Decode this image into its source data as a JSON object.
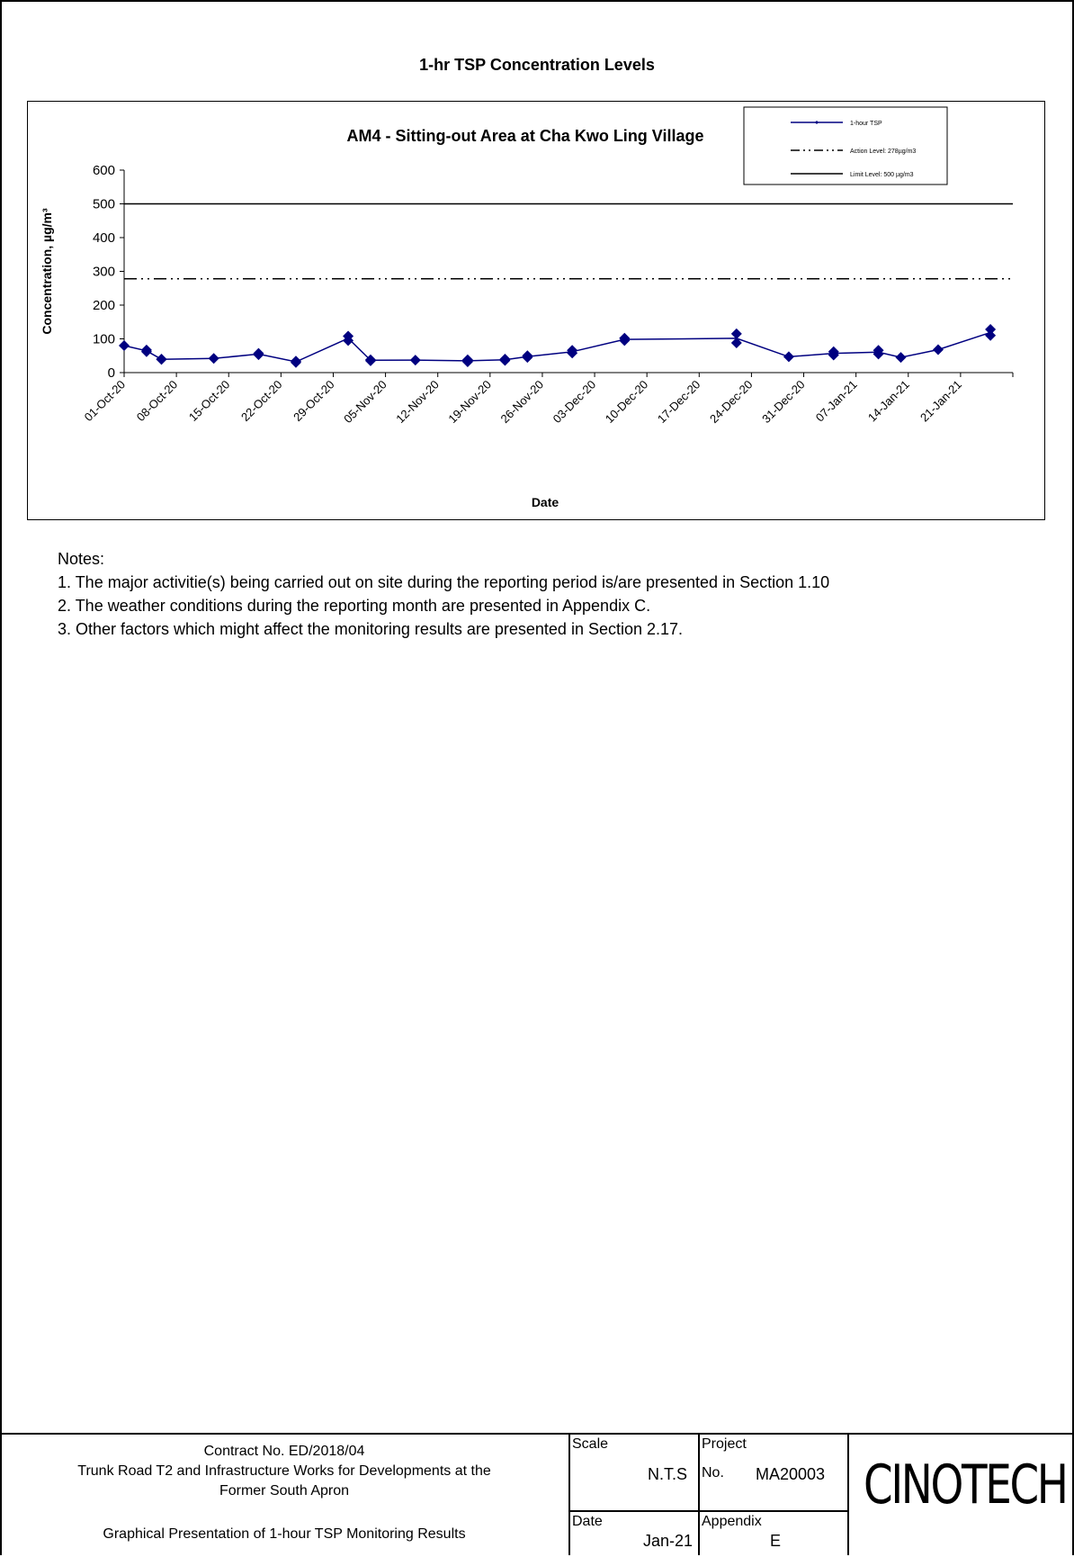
{
  "page_title": "1-hr TSP Concentration Levels",
  "chart_data": {
    "type": "line",
    "title": "AM4 - Sitting-out Area at Cha Kwo Ling Village",
    "xlabel": "Date",
    "ylabel": "Concentration, µg/m³",
    "ylim": [
      0,
      600
    ],
    "yticks": [
      0,
      100,
      200,
      300,
      400,
      500,
      600
    ],
    "xticks": [
      "01-Oct-20",
      "08-Oct-20",
      "15-Oct-20",
      "22-Oct-20",
      "29-Oct-20",
      "05-Nov-20",
      "12-Nov-20",
      "19-Nov-20",
      "26-Nov-20",
      "03-Dec-20",
      "10-Dec-20",
      "17-Dec-20",
      "24-Dec-20",
      "31-Dec-20",
      "07-Jan-21",
      "14-Jan-21",
      "21-Jan-21"
    ],
    "xlim": [
      "01-Oct-20",
      "28-Jan-21"
    ],
    "legend_position": "top-right",
    "series": [
      {
        "name": "1-hour TSP",
        "color": "#000080",
        "marker": "diamond",
        "points": [
          [
            "01-Oct-20",
            80
          ],
          [
            "04-Oct-20",
            62
          ],
          [
            "04-Oct-20",
            67
          ],
          [
            "06-Oct-20",
            40
          ],
          [
            "06-Oct-20",
            39
          ],
          [
            "13-Oct-20",
            42
          ],
          [
            "19-Oct-20",
            53
          ],
          [
            "19-Oct-20",
            57
          ],
          [
            "24-Oct-20",
            30
          ],
          [
            "24-Oct-20",
            34
          ],
          [
            "31-Oct-20",
            95
          ],
          [
            "31-Oct-20",
            108
          ],
          [
            "03-Nov-20",
            35
          ],
          [
            "03-Nov-20",
            38
          ],
          [
            "09-Nov-20",
            37
          ],
          [
            "16-Nov-20",
            32
          ],
          [
            "16-Nov-20",
            38
          ],
          [
            "21-Nov-20",
            40
          ],
          [
            "21-Nov-20",
            36
          ],
          [
            "24-Nov-20",
            45
          ],
          [
            "24-Nov-20",
            50
          ],
          [
            "30-Nov-20",
            58
          ],
          [
            "30-Nov-20",
            66
          ],
          [
            "07-Dec-20",
            95
          ],
          [
            "07-Dec-20",
            102
          ],
          [
            "22-Dec-20",
            88
          ],
          [
            "22-Dec-20",
            115
          ],
          [
            "29-Dec-20",
            47
          ],
          [
            "04-Jan-21",
            52
          ],
          [
            "04-Jan-21",
            62
          ],
          [
            "10-Jan-21",
            55
          ],
          [
            "10-Jan-21",
            66
          ],
          [
            "13-Jan-21",
            45
          ],
          [
            "18-Jan-21",
            68
          ],
          [
            "25-Jan-21",
            110
          ],
          [
            "25-Jan-21",
            128
          ]
        ]
      },
      {
        "name": "Action Level:  278µg/m3",
        "value": 278,
        "style": "dash-dot-dot",
        "color": "#000000"
      },
      {
        "name": "Limit Level: 500 µg/m3",
        "value": 500,
        "style": "solid",
        "color": "#000000"
      }
    ]
  },
  "notes": {
    "heading": "Notes:",
    "items": [
      "1. The major activitie(s) being carried out on site during the reporting period is/are presented in Section 1.10",
      "2. The weather conditions during the reporting month are presented in Appendix C.",
      "3. Other factors which might affect the monitoring results are presented in Section 2.17."
    ]
  },
  "footer": {
    "contract_line1": "Contract No. ED/2018/04",
    "contract_line2": "Trunk Road T2 and Infrastructure Works for Developments at the",
    "contract_line3": "Former South Apron",
    "description": "Graphical Presentation of 1-hour TSP Monitoring Results",
    "scale_label": "Scale",
    "scale_value": "N.T.S",
    "project_label": "Project",
    "project_no_label": "No.",
    "project_no": "MA20003",
    "date_label": "Date",
    "date_value": "Jan-21",
    "appendix_label": "Appendix",
    "appendix_value": "E",
    "logo_text": "CINOTECH"
  }
}
